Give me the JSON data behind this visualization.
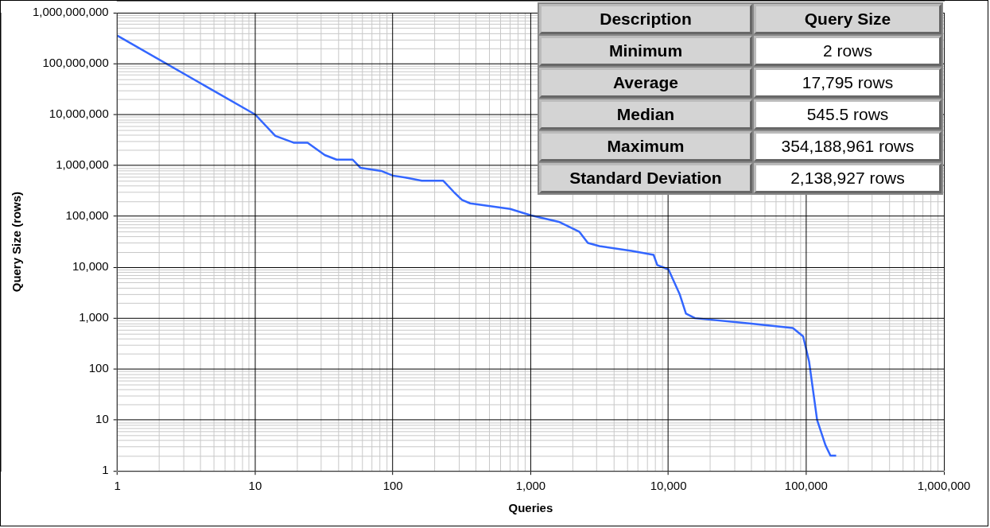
{
  "chart_data": {
    "type": "line",
    "xlabel": "Queries",
    "ylabel": "Query Size (rows)",
    "log": "xy",
    "grid": true,
    "legend": false,
    "marker": "none",
    "line_style": "solid",
    "xlim": [
      1,
      1000000
    ],
    "xticks": [
      1,
      10,
      100,
      {
        "value": 1000,
        "label": "1,000"
      },
      {
        "value": 10000,
        "label": "10,000"
      },
      {
        "value": 100000,
        "label": "100,000"
      },
      {
        "value": 1000000,
        "label": "1,000,000"
      }
    ],
    "ylim": [
      1,
      1000000000
    ],
    "yticks": [
      1,
      10,
      100,
      {
        "value": 1000,
        "label": "1,000"
      },
      {
        "value": 10000,
        "label": "10,000"
      },
      {
        "value": 100000,
        "label": "100,000"
      },
      {
        "value": 1000000,
        "label": "1,000,000"
      },
      {
        "value": 10000000,
        "label": "10,000,000"
      },
      {
        "value": 100000000,
        "label": "100,000,000"
      },
      {
        "value": 1000000000,
        "label": "1,000,000,000"
      }
    ],
    "series": [
      {
        "color": "#3366ff",
        "x": [
          1,
          10,
          14,
          19,
          24,
          32,
          39,
          51,
          58,
          82,
          100,
          123,
          162,
          232,
          277,
          317,
          364,
          710,
          1000,
          1600,
          2250,
          2600,
          3150,
          5400,
          7800,
          8300,
          10000,
          12100,
          13400,
          15600,
          40000,
          80000,
          95000,
          105000,
          120000,
          138000,
          150000,
          165000
        ],
        "values": [
          354188961,
          10000000,
          3800000,
          2800000,
          2800000,
          1600000,
          1300000,
          1300000,
          900000,
          780000,
          630000,
          580000,
          500000,
          500000,
          300000,
          210000,
          180000,
          140000,
          105000,
          78000,
          50000,
          30000,
          26000,
          21000,
          17500,
          11000,
          9100,
          2900,
          1230,
          1000,
          780,
          640,
          440,
          140,
          10,
          3.2,
          2,
          2
        ]
      }
    ],
    "annotations": [
      "Description",
      "Query Size",
      "Minimum",
      "2 rows",
      "Average",
      "17,795 rows",
      "Median",
      "545.5 rows",
      "Maximum",
      "354,188,961 rows",
      "Standard Deviation",
      "2,138,927 rows"
    ]
  }
}
